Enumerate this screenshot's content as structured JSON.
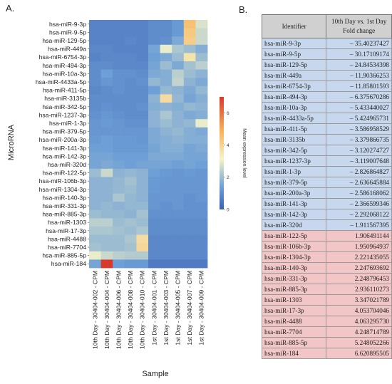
{
  "panel_a_label": "A.",
  "panel_b_label": "B.",
  "chart_data": {
    "type": "heatmap",
    "xlabel": "Sample",
    "ylabel": "MicroRNA",
    "colorbar": {
      "label": "Mean expression level",
      "ticks": [
        0,
        2,
        4,
        6
      ],
      "range": [
        0,
        7
      ]
    },
    "rows": [
      "hsa-miR-9-3p",
      "hsa-miR-9-5p",
      "hsa-miR-129-5p",
      "hsa-miR-449a",
      "hsa-miR-6754-3p",
      "hsa-miR-494-3p",
      "hsa-miR-10a-3p",
      "hsa-miR-4433a-5p",
      "hsa-miR-411-5p",
      "hsa-miR-3135b",
      "hsa-miR-342-5p",
      "hsa-miR-1237-3p",
      "hsa-miR-1-3p",
      "hsa-miR-379-5p",
      "hsa-miR-200a-3p",
      "hsa-miR-141-3p",
      "hsa-miR-142-3p",
      "hsa-miR-320d",
      "hsa-miR-122-5p",
      "hsa-miR-106b-3p",
      "hsa-miR-1304-3p",
      "hsa-miR-140-3p",
      "hsa-miR-331-3p",
      "hsa-miR-885-3p",
      "hsa-miR-1303",
      "hsa-miR-17-3p",
      "hsa-miR-4488",
      "hsa-miR-7704",
      "hsa-miR-885-5p",
      "hsa-miR-184"
    ],
    "columns": [
      "10th Day - 30404-002 - CPM",
      "10th Day - 30404-004 - CPM",
      "10th Day - 30404-006 - CPM",
      "10th Day - 30404-008 - CPM",
      "10th Day - 30404-010 - CPM",
      "1st Day - 30404-001 - CPM",
      "1st Day - 30404-003 - CPM",
      "1st Day - 30404-005 - CPM",
      "1st Day - 30404-007 - CPM",
      "1st Day - 30404-009 - CPM"
    ],
    "values": [
      [
        0.8,
        0.8,
        0.8,
        0.8,
        0.8,
        1.0,
        1.0,
        1.3,
        4.5,
        2.8
      ],
      [
        0.8,
        0.8,
        0.8,
        0.8,
        0.8,
        1.0,
        1.0,
        1.3,
        4.3,
        2.6
      ],
      [
        0.8,
        0.8,
        0.8,
        0.9,
        0.8,
        1.0,
        1.1,
        1.6,
        4.2,
        2.6
      ],
      [
        0.9,
        0.9,
        0.8,
        0.8,
        0.8,
        1.5,
        3.0,
        2.2,
        2.0,
        1.7
      ],
      [
        0.8,
        0.9,
        0.9,
        0.9,
        0.8,
        1.4,
        1.6,
        2.0,
        3.6,
        2.0
      ],
      [
        1.0,
        1.0,
        0.9,
        0.9,
        0.9,
        1.5,
        2.0,
        1.6,
        2.1,
        2.4
      ],
      [
        1.0,
        1.4,
        1.1,
        1.1,
        1.0,
        1.6,
        1.7,
        2.4,
        2.0,
        1.8
      ],
      [
        1.0,
        1.2,
        1.1,
        1.0,
        1.1,
        1.9,
        1.7,
        2.5,
        1.8,
        1.6
      ],
      [
        0.9,
        1.0,
        1.1,
        1.0,
        1.0,
        1.4,
        1.9,
        1.8,
        1.6,
        1.9
      ],
      [
        1.0,
        1.0,
        1.0,
        1.0,
        1.0,
        1.8,
        3.8,
        1.9,
        1.5,
        1.7
      ],
      [
        1.0,
        1.1,
        1.0,
        1.0,
        1.1,
        1.7,
        1.8,
        1.7,
        1.9,
        1.8
      ],
      [
        1.1,
        1.2,
        1.1,
        1.0,
        1.0,
        1.8,
        2.2,
        1.8,
        1.6,
        1.7
      ],
      [
        1.2,
        1.3,
        1.2,
        1.1,
        1.1,
        1.8,
        2.0,
        1.8,
        1.9,
        3.0
      ],
      [
        1.2,
        1.2,
        1.2,
        1.2,
        1.2,
        1.6,
        1.8,
        1.9,
        1.7,
        1.6
      ],
      [
        1.3,
        1.4,
        1.3,
        1.3,
        1.2,
        1.6,
        1.7,
        1.8,
        1.7,
        1.7
      ],
      [
        1.4,
        1.4,
        1.3,
        1.3,
        1.3,
        1.5,
        1.7,
        1.7,
        1.5,
        1.6
      ],
      [
        1.5,
        1.5,
        1.4,
        1.4,
        1.4,
        1.6,
        1.6,
        1.6,
        1.5,
        1.5
      ],
      [
        1.5,
        1.6,
        1.5,
        1.4,
        1.5,
        1.5,
        1.5,
        1.4,
        1.5,
        1.4
      ],
      [
        2.0,
        2.6,
        1.8,
        1.9,
        1.8,
        1.4,
        1.3,
        1.2,
        1.3,
        1.2
      ],
      [
        1.8,
        1.8,
        1.9,
        2.1,
        1.8,
        1.3,
        1.2,
        1.2,
        1.2,
        1.2
      ],
      [
        1.8,
        1.8,
        1.9,
        2.0,
        1.8,
        1.3,
        1.2,
        1.2,
        1.2,
        1.2
      ],
      [
        1.8,
        1.8,
        2.2,
        1.9,
        1.8,
        1.2,
        1.2,
        1.2,
        1.1,
        1.2
      ],
      [
        1.8,
        1.9,
        1.8,
        1.9,
        1.9,
        1.2,
        1.1,
        1.2,
        1.1,
        1.1
      ],
      [
        2.0,
        1.9,
        1.9,
        1.8,
        2.1,
        1.1,
        1.1,
        1.1,
        1.1,
        1.1
      ],
      [
        2.4,
        2.4,
        2.0,
        2.1,
        2.0,
        1.0,
        1.0,
        1.0,
        1.0,
        1.0
      ],
      [
        2.2,
        2.2,
        2.1,
        2.0,
        2.2,
        1.0,
        1.0,
        1.0,
        1.0,
        1.0
      ],
      [
        2.0,
        2.0,
        2.0,
        2.2,
        3.8,
        0.9,
        0.9,
        0.9,
        0.9,
        0.9
      ],
      [
        2.1,
        2.0,
        2.0,
        2.1,
        3.9,
        0.9,
        0.9,
        0.9,
        0.9,
        0.9
      ],
      [
        3.0,
        2.6,
        2.4,
        2.3,
        2.3,
        0.9,
        0.9,
        0.9,
        0.9,
        0.9
      ],
      [
        1.5,
        7.0,
        1.4,
        1.3,
        1.3,
        0.6,
        0.6,
        0.6,
        0.6,
        0.6
      ]
    ]
  },
  "table": {
    "header_identifier": "Identifier",
    "header_fold": "10th Day vs. 1st Day Fold change",
    "rows": [
      {
        "id": "hsa-miR-9-3p",
        "fc": "– 35.40237427",
        "dir": "up"
      },
      {
        "id": "hsa-miR-9-5p",
        "fc": "– 30.17109174",
        "dir": "up"
      },
      {
        "id": "hsa-miR-129-5p",
        "fc": "– 24.84534398",
        "dir": "up"
      },
      {
        "id": "hsa-miR-449a",
        "fc": "– 11.90366253",
        "dir": "up"
      },
      {
        "id": "hsa-miR-6754-3p",
        "fc": "– 11.85801593",
        "dir": "up"
      },
      {
        "id": "hsa-miR-494-3p",
        "fc": "– 6.375670286",
        "dir": "up"
      },
      {
        "id": "hsa-miR-10a-3p",
        "fc": "– 5.433440027",
        "dir": "up"
      },
      {
        "id": "hsa-miR-4433a-5p",
        "fc": "– 5.424965731",
        "dir": "up"
      },
      {
        "id": "hsa-miR-411-5p",
        "fc": "– 3.586958529",
        "dir": "up"
      },
      {
        "id": "hsa-miR-3135b",
        "fc": "– 3.379866735",
        "dir": "up"
      },
      {
        "id": "hsa-miR-342-5p",
        "fc": "– 3.120274727",
        "dir": "up"
      },
      {
        "id": "hsa-miR-1237-3p",
        "fc": "– 3.119007648",
        "dir": "up"
      },
      {
        "id": "hsa-miR-1-3p",
        "fc": "– 2.826864827",
        "dir": "up"
      },
      {
        "id": "hsa-miR-379-5p",
        "fc": "– 2.636645884",
        "dir": "up"
      },
      {
        "id": "hsa-miR-200a-3p",
        "fc": "– 2.586168062",
        "dir": "up"
      },
      {
        "id": "hsa-miR-141-3p",
        "fc": "– 2.366599346",
        "dir": "up"
      },
      {
        "id": "hsa-miR-142-3p",
        "fc": "– 2.292068122",
        "dir": "up"
      },
      {
        "id": "hsa-miR-320d",
        "fc": "– 1.911567395",
        "dir": "up"
      },
      {
        "id": "hsa-miR-122-5p",
        "fc": "1.906491144",
        "dir": "down"
      },
      {
        "id": "hsa-miR-106b-3p",
        "fc": "1.950964937",
        "dir": "down"
      },
      {
        "id": "hsa-miR-1304-3p",
        "fc": "2.221435055",
        "dir": "down"
      },
      {
        "id": "hsa-miR-140-3p",
        "fc": "2.247693692",
        "dir": "down"
      },
      {
        "id": "hsa-miR-331-3p",
        "fc": "2.248796453",
        "dir": "down"
      },
      {
        "id": "hsa-miR-885-3p",
        "fc": "2.936110273",
        "dir": "down"
      },
      {
        "id": "hsa-miR-1303",
        "fc": "3.347021789",
        "dir": "down"
      },
      {
        "id": "hsa-miR-17-3p",
        "fc": "4.053704046",
        "dir": "down"
      },
      {
        "id": "hsa-miR-4488",
        "fc": "4.063295730",
        "dir": "down"
      },
      {
        "id": "hsa-miR-7704",
        "fc": "4.248714789",
        "dir": "down"
      },
      {
        "id": "hsa-miR-885-5p",
        "fc": "5.248052266",
        "dir": "down"
      },
      {
        "id": "hsa-miR-184",
        "fc": "6.620895505",
        "dir": "down"
      }
    ]
  }
}
